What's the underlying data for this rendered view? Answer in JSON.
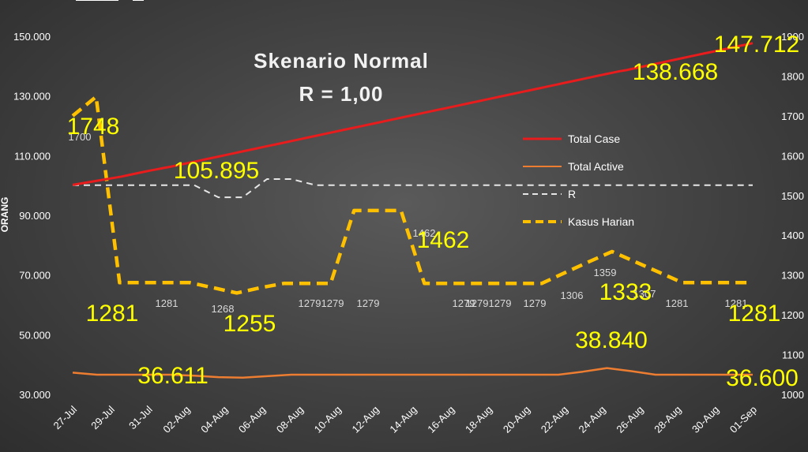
{
  "chart_data": {
    "type": "line",
    "title": "Skenario Normal",
    "subtitle": "R = 1,00",
    "ylabel": "ORANG",
    "ylim_left": [
      30000,
      150000
    ],
    "ylim_right": [
      1000,
      1900
    ],
    "left_ticks": [
      "30.000",
      "50.000",
      "70.000",
      "90.000",
      "110.000",
      "130.000",
      "150.000"
    ],
    "right_ticks": [
      "1000",
      "1100",
      "1200",
      "1300",
      "1400",
      "1500",
      "1600",
      "1700",
      "1800",
      "1900"
    ],
    "x_tick_labels": [
      "27-Jul",
      "29-Jul",
      "31-Jul",
      "02-Aug",
      "04-Aug",
      "06-Aug",
      "08-Aug",
      "10-Aug",
      "12-Aug",
      "14-Aug",
      "16-Aug",
      "18-Aug",
      "20-Aug",
      "22-Aug",
      "24-Aug",
      "26-Aug",
      "28-Aug",
      "30-Aug",
      "01-Sep"
    ],
    "legend_position": "right",
    "series": [
      {
        "name": "Total Case",
        "axis": "left",
        "color": "#e81c1c",
        "values": [
          100200,
          100600,
          101000,
          101400,
          101800,
          102200,
          102600,
          103000,
          103500,
          104000,
          104500,
          105000,
          105400,
          105895,
          106300,
          106800,
          107300,
          107800,
          108300,
          108800,
          109300,
          109800,
          110300,
          110800,
          111300,
          111800,
          112300,
          112800,
          113300,
          113800,
          114300,
          114800,
          115300,
          115800,
          116300,
          116800,
          117300,
          117800,
          118300,
          118800,
          119300,
          119800,
          120300,
          120800,
          121300,
          121800,
          122300,
          122800,
          123300,
          123800,
          124300,
          124800,
          125300,
          125800,
          126300,
          126800,
          127300,
          127800,
          128300,
          128800,
          129300,
          129800,
          130300,
          130800,
          131300,
          131800,
          132300,
          132800,
          133300,
          133800,
          134300,
          134800,
          135300,
          135800,
          136300,
          136800,
          137300,
          137800,
          138300,
          138668,
          139200,
          139700,
          140200,
          140700,
          141200,
          141700,
          142200,
          142700,
          143200,
          143700,
          144200,
          144700,
          145200,
          145700,
          146200,
          146700,
          147200,
          147712
        ]
      },
      {
        "name": "Total Active",
        "axis": "left",
        "color": "#ed7d31",
        "values": [
          37300,
          36611,
          36611,
          36611,
          36600,
          36300,
          35800,
          35600,
          36100,
          36600,
          36611,
          36611,
          36611,
          36611,
          36611,
          36611,
          36611,
          36611,
          36611,
          36611,
          36611,
          37600,
          38840,
          37800,
          36611,
          36611,
          36611,
          36611,
          36600
        ]
      },
      {
        "name": "R",
        "axis": "right",
        "color": "#e6e6e6",
        "dash": "dash",
        "values": [
          1.0,
          1.0,
          1.0,
          1.0,
          1.0,
          1.0,
          0.98,
          0.98,
          1.01,
          1.01,
          1.0,
          1.0,
          1.0,
          1.0,
          1.0,
          1.0,
          1.0,
          1.0,
          1.0,
          1.0,
          1.0,
          1.0,
          1.0,
          1.0,
          1.0,
          1.0,
          1.0,
          1.0,
          1.0
        ]
      },
      {
        "name": "Kasus Harian",
        "axis": "right",
        "color": "#ffc000",
        "dash": "dash",
        "values": [
          1700,
          1748,
          1281,
          1281,
          1281,
          1281,
          1268,
          1255,
          1268,
          1279,
          1279,
          1279,
          1462,
          1462,
          1462,
          1279,
          1279,
          1279,
          1279,
          1279,
          1279,
          1306,
          1333,
          1359,
          1333,
          1307,
          1281,
          1281,
          1281,
          1281
        ]
      }
    ],
    "data_labels_small": [
      {
        "text": "1700"
      },
      {
        "text": "1281"
      },
      {
        "text": "1268"
      },
      {
        "text": "1279"
      },
      {
        "text": "1279"
      },
      {
        "text": "1279"
      },
      {
        "text": "1462"
      },
      {
        "text": "1279"
      },
      {
        "text": "1279"
      },
      {
        "text": "1279"
      },
      {
        "text": "1279"
      },
      {
        "text": "1306"
      },
      {
        "text": "1359"
      },
      {
        "text": "1307"
      },
      {
        "text": "1281"
      },
      {
        "text": "1281"
      }
    ],
    "data_labels_big": [
      {
        "text": "1748"
      },
      {
        "text": "105.895"
      },
      {
        "text": "1462"
      },
      {
        "text": "1281"
      },
      {
        "text": "1255"
      },
      {
        "text": "138.668"
      },
      {
        "text": "147.712"
      },
      {
        "text": "1333"
      },
      {
        "text": "38.840"
      },
      {
        "text": "36.611"
      },
      {
        "text": "36.600"
      },
      {
        "text": "1281"
      }
    ]
  }
}
